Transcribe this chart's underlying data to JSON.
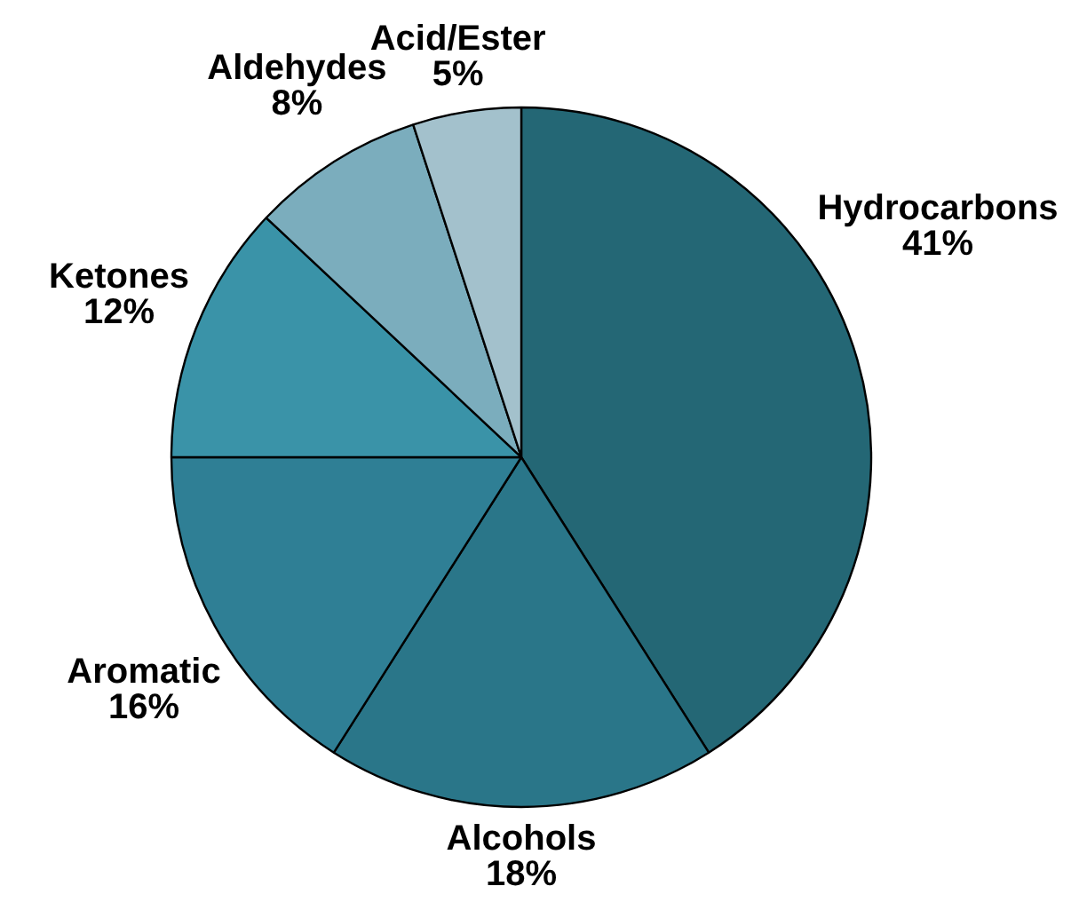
{
  "chart_data": {
    "type": "pie",
    "categories": [
      "Hydrocarbons",
      "Alcohols",
      "Aromatic",
      "Ketones",
      "Aldehydes",
      "Acid/Ester"
    ],
    "values": [
      41,
      18,
      16,
      12,
      8,
      5
    ],
    "value_labels": [
      "41%",
      "18%",
      "16%",
      "12%",
      "8%",
      "5%"
    ],
    "colors": [
      "#246775",
      "#2a7689",
      "#2f7f95",
      "#3a93a8",
      "#7badbd",
      "#a3c1cc"
    ]
  }
}
